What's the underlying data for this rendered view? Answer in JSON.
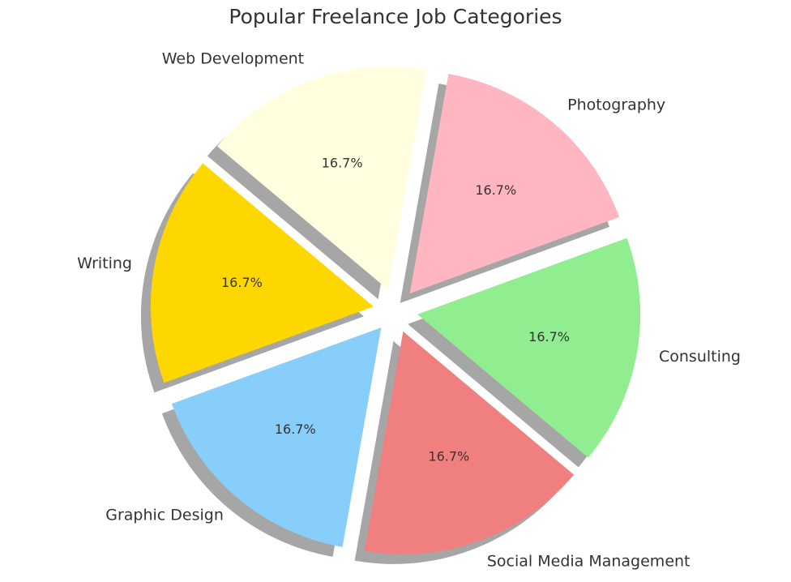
{
  "chart_data": {
    "type": "pie",
    "title": "Popular Freelance Job Categories",
    "categories": [
      "Writing",
      "Graphic Design",
      "Social Media Management",
      "Consulting",
      "Photography",
      "Web Development"
    ],
    "values": [
      16.7,
      16.7,
      16.7,
      16.7,
      16.7,
      16.7
    ],
    "value_labels": [
      "16.7%",
      "16.7%",
      "16.7%",
      "16.7%",
      "16.7%",
      "16.7%"
    ],
    "colors": [
      "#ffd700",
      "#87cefa",
      "#f08080",
      "#90ee90",
      "#ffb6c1",
      "#ffffe0"
    ],
    "shadow": true
  }
}
